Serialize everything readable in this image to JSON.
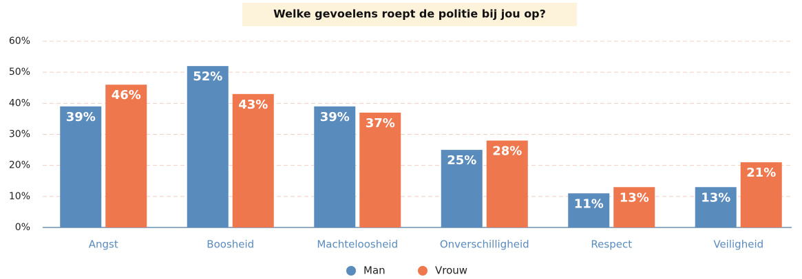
{
  "chart_data": {
    "type": "bar",
    "title": "Welke gevoelens roept de politie bij jou op?",
    "categories": [
      "Angst",
      "Boosheid",
      "Machteloosheid",
      "Onverschilligheid",
      "Respect",
      "Veiligheid"
    ],
    "series": [
      {
        "name": "Man",
        "color": "#5a8bbd",
        "values": [
          39,
          52,
          39,
          25,
          11,
          13
        ],
        "value_labels": [
          "39%",
          "52%",
          "39%",
          "25%",
          "11%",
          "13%"
        ]
      },
      {
        "name": "Vrouw",
        "color": "#ef774e",
        "values": [
          46,
          43,
          37,
          28,
          13,
          21
        ],
        "value_labels": [
          "46%",
          "43%",
          "37%",
          "28%",
          "13%",
          "21%"
        ]
      }
    ],
    "ylim": [
      0,
      60
    ],
    "yticks": [
      {
        "value": 0,
        "label": "0%"
      },
      {
        "value": 10,
        "label": "10%"
      },
      {
        "value": 20,
        "label": "20%"
      },
      {
        "value": 30,
        "label": "30%"
      },
      {
        "value": 40,
        "label": "40%"
      },
      {
        "value": 50,
        "label": "50%"
      },
      {
        "value": 60,
        "label": "60%"
      }
    ],
    "grid": true,
    "legend": "bottom"
  }
}
